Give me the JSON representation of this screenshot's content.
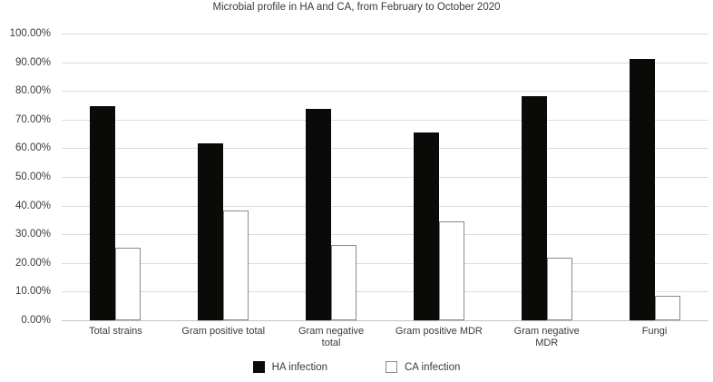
{
  "chart_data": {
    "type": "bar",
    "title": "Microbial profile in HA and CA, from February to October 2020",
    "categories": [
      "Total strains",
      "Gram positive total",
      "Gram negative\ntotal",
      "Gram positive MDR",
      "Gram negative\nMDR",
      "Fungi"
    ],
    "series": [
      {
        "name": "HA infection",
        "key": "ha",
        "fill": "#0a0a08",
        "border": "none",
        "values": [
          74.7,
          61.6,
          73.7,
          65.5,
          78.1,
          91.3
        ]
      },
      {
        "name": "CA infection",
        "key": "ca",
        "fill": "#ffffff",
        "border": "#8a8a8a",
        "values": [
          25.3,
          38.4,
          26.3,
          34.5,
          21.9,
          8.7
        ]
      }
    ],
    "ylabel": "",
    "xlabel": "",
    "ylim": [
      0,
      100
    ],
    "yticks": [
      "100.00%",
      "90.00%",
      "80.00%",
      "70.00%",
      "60.00%",
      "50.00%",
      "40.00%",
      "30.00%",
      "20.00%",
      "10.00%",
      "0.00%"
    ],
    "ytick_values": [
      100,
      90,
      80,
      70,
      60,
      50,
      40,
      30,
      20,
      10,
      0
    ],
    "grid": "horizontal",
    "legend_position": "bottom"
  },
  "colors": {
    "bar_black": "#0a0a08",
    "bar_white_fill": "#ffffff",
    "bar_white_border": "#8a8a8a",
    "gridline": "#dcdcdc",
    "axis_line": "#c3c3c3",
    "text": "#3a3a3a",
    "background": "#ffffff"
  }
}
